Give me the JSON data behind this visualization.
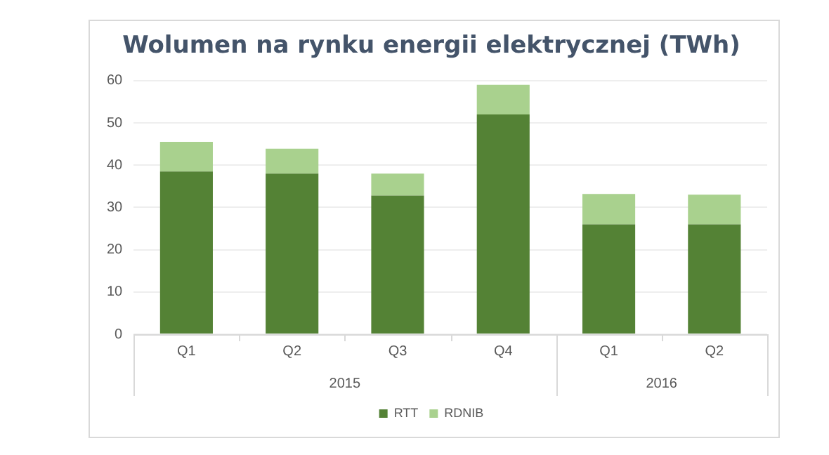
{
  "chart_data": {
    "type": "bar",
    "title": "Wolumen na rynku energii elektrycznej (TWh)",
    "categories": [
      "Q1",
      "Q2",
      "Q3",
      "Q4",
      "Q1",
      "Q2"
    ],
    "annotations": [
      "2015",
      "2016"
    ],
    "stacked": true,
    "series": [
      {
        "name": "RTT",
        "color": "#548235",
        "values": [
          38.5,
          38.0,
          32.8,
          52.0,
          26.0,
          26.0
        ]
      },
      {
        "name": "RDNIB",
        "color": "#a9d18e",
        "values": [
          7.0,
          5.9,
          5.2,
          7.0,
          7.2,
          7.0
        ]
      }
    ],
    "ylim": [
      0,
      60
    ],
    "yticks": [
      0,
      10,
      20,
      30,
      40,
      50,
      60
    ],
    "grid": "y",
    "legend": "bottom"
  }
}
